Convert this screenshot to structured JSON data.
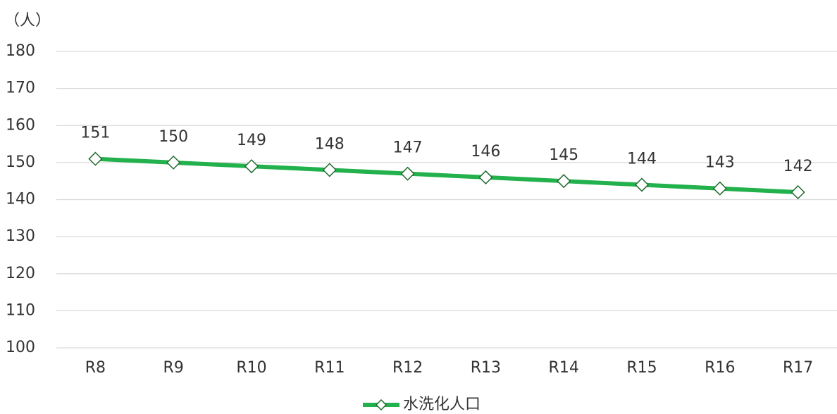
{
  "chart_data": {
    "type": "line",
    "y_label": "（人）",
    "categories": [
      "R8",
      "R9",
      "R10",
      "R11",
      "R12",
      "R13",
      "R14",
      "R15",
      "R16",
      "R17"
    ],
    "series": [
      {
        "name": "水洗化人口",
        "color": "#22b14c",
        "values": [
          151,
          150,
          149,
          148,
          147,
          146,
          145,
          144,
          143,
          142
        ]
      }
    ],
    "ylim": [
      100,
      180
    ],
    "yticks": [
      100,
      110,
      120,
      130,
      140,
      150,
      160,
      170,
      180
    ],
    "grid": true,
    "legend": "bottom"
  }
}
